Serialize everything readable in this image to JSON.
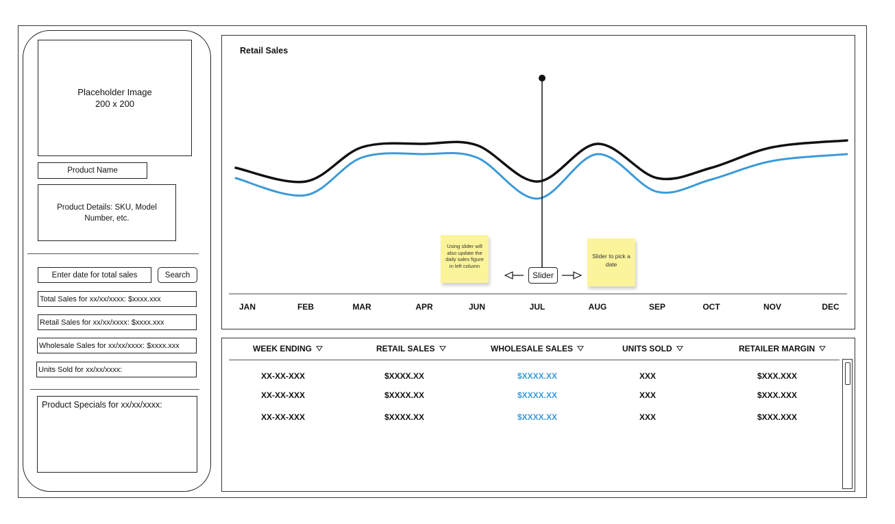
{
  "sidebar": {
    "image_placeholder_line1": "Placeholder Image",
    "image_placeholder_line2": "200 x 200",
    "product_name": "Product Name",
    "product_details": "Product Details: SKU, Model Number, etc.",
    "date_input_placeholder": "Enter date for total sales",
    "search_label": "Search",
    "total_sales": "Total Sales for xx/xx/xxxx: $xxxx.xxx",
    "retail_sales": "Retail Sales for xx/xx/xxxx: $xxxx.xxx",
    "wholesale_sales": "Wholesale Sales for xx/xx/xxxx: $xxxx.xxx",
    "units_sold": "Units Sold for xx/xx/xxxx:",
    "product_specials": "Product Specials for xx/xx/xxxx:"
  },
  "chart": {
    "title": "Retail Sales",
    "slider_label": "Slider",
    "note_slider_update": "Using slider will also update the daily sales figure in left column",
    "note_slider_pick": "Slider to pick a date"
  },
  "chart_data": {
    "type": "line",
    "title": "Retail Sales",
    "categories": [
      "JAN",
      "FEB",
      "MAR",
      "APR",
      "JUN",
      "JUL",
      "AUG",
      "SEP",
      "OCT",
      "NOV",
      "DEC"
    ],
    "series": [
      {
        "color": "#111111",
        "values": [
          0.55,
          0.35,
          0.85,
          0.9,
          0.88,
          0.35,
          0.9,
          0.4,
          0.55,
          0.85,
          0.95
        ]
      },
      {
        "color": "#3a9ad9",
        "values": [
          0.4,
          0.15,
          0.7,
          0.75,
          0.7,
          0.1,
          0.75,
          0.2,
          0.38,
          0.65,
          0.75
        ]
      }
    ],
    "slider_position": "JUL"
  },
  "table": {
    "headers": [
      "WEEK ENDING",
      "RETAIL SALES",
      "WHOLESALE SALES",
      "UNITS SOLD",
      "RETAILER MARGIN"
    ],
    "rows": [
      [
        "XX-XX-XXX",
        "$XXXX.XX",
        "$XXXX.XX",
        "XXX",
        "$XXX.XXX"
      ],
      [
        "XX-XX-XXX",
        "$XXXX.XX",
        "$XXXX.XX",
        "XXX",
        "$XXX.XXX"
      ],
      [
        "XX-XX-XXX",
        "$XXXX.XX",
        "$XXXX.XX",
        "XXX",
        "$XXX.XXX"
      ]
    ],
    "link_color": "#3a9ad9"
  }
}
